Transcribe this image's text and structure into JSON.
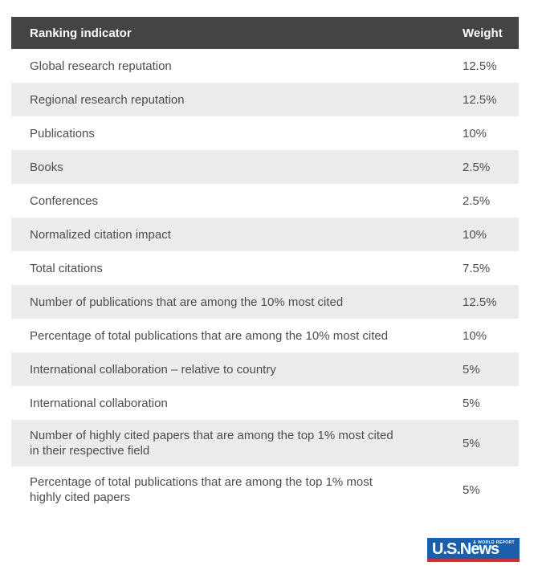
{
  "table": {
    "columns": [
      "Ranking indicator",
      "Weight"
    ],
    "rows": [
      {
        "indicator": "Global research reputation",
        "weight": "12.5%"
      },
      {
        "indicator": "Regional research reputation",
        "weight": "12.5%"
      },
      {
        "indicator": "Publications",
        "weight": "10%"
      },
      {
        "indicator": "Books",
        "weight": "2.5%"
      },
      {
        "indicator": "Conferences",
        "weight": "2.5%"
      },
      {
        "indicator": "Normalized citation impact",
        "weight": "10%"
      },
      {
        "indicator": "Total citations",
        "weight": "7.5%"
      },
      {
        "indicator": "Number of publications that are among the 10% most cited",
        "weight": "12.5%"
      },
      {
        "indicator": "Percentage of total publications that are among the 10% most cited",
        "weight": "10%"
      },
      {
        "indicator": "International collaboration – relative to country",
        "weight": "5%"
      },
      {
        "indicator": "International collaboration",
        "weight": "5%"
      },
      {
        "indicator": "Number of highly cited papers that are among the top 1% most cited\nin their respective field",
        "weight": "5%"
      },
      {
        "indicator": "Percentage of total publications that are among the top 1% most\nhighly cited papers",
        "weight": "5%"
      }
    ]
  },
  "logo": {
    "main": "U.S.News",
    "sub": "& WORLD REPORT"
  },
  "colors": {
    "header_bg": "#444444",
    "row_alt_bg": "#ececec",
    "row_text": "#4d4d4d",
    "logo_blue": "#1b5faa",
    "logo_red": "#cc2f3b"
  }
}
